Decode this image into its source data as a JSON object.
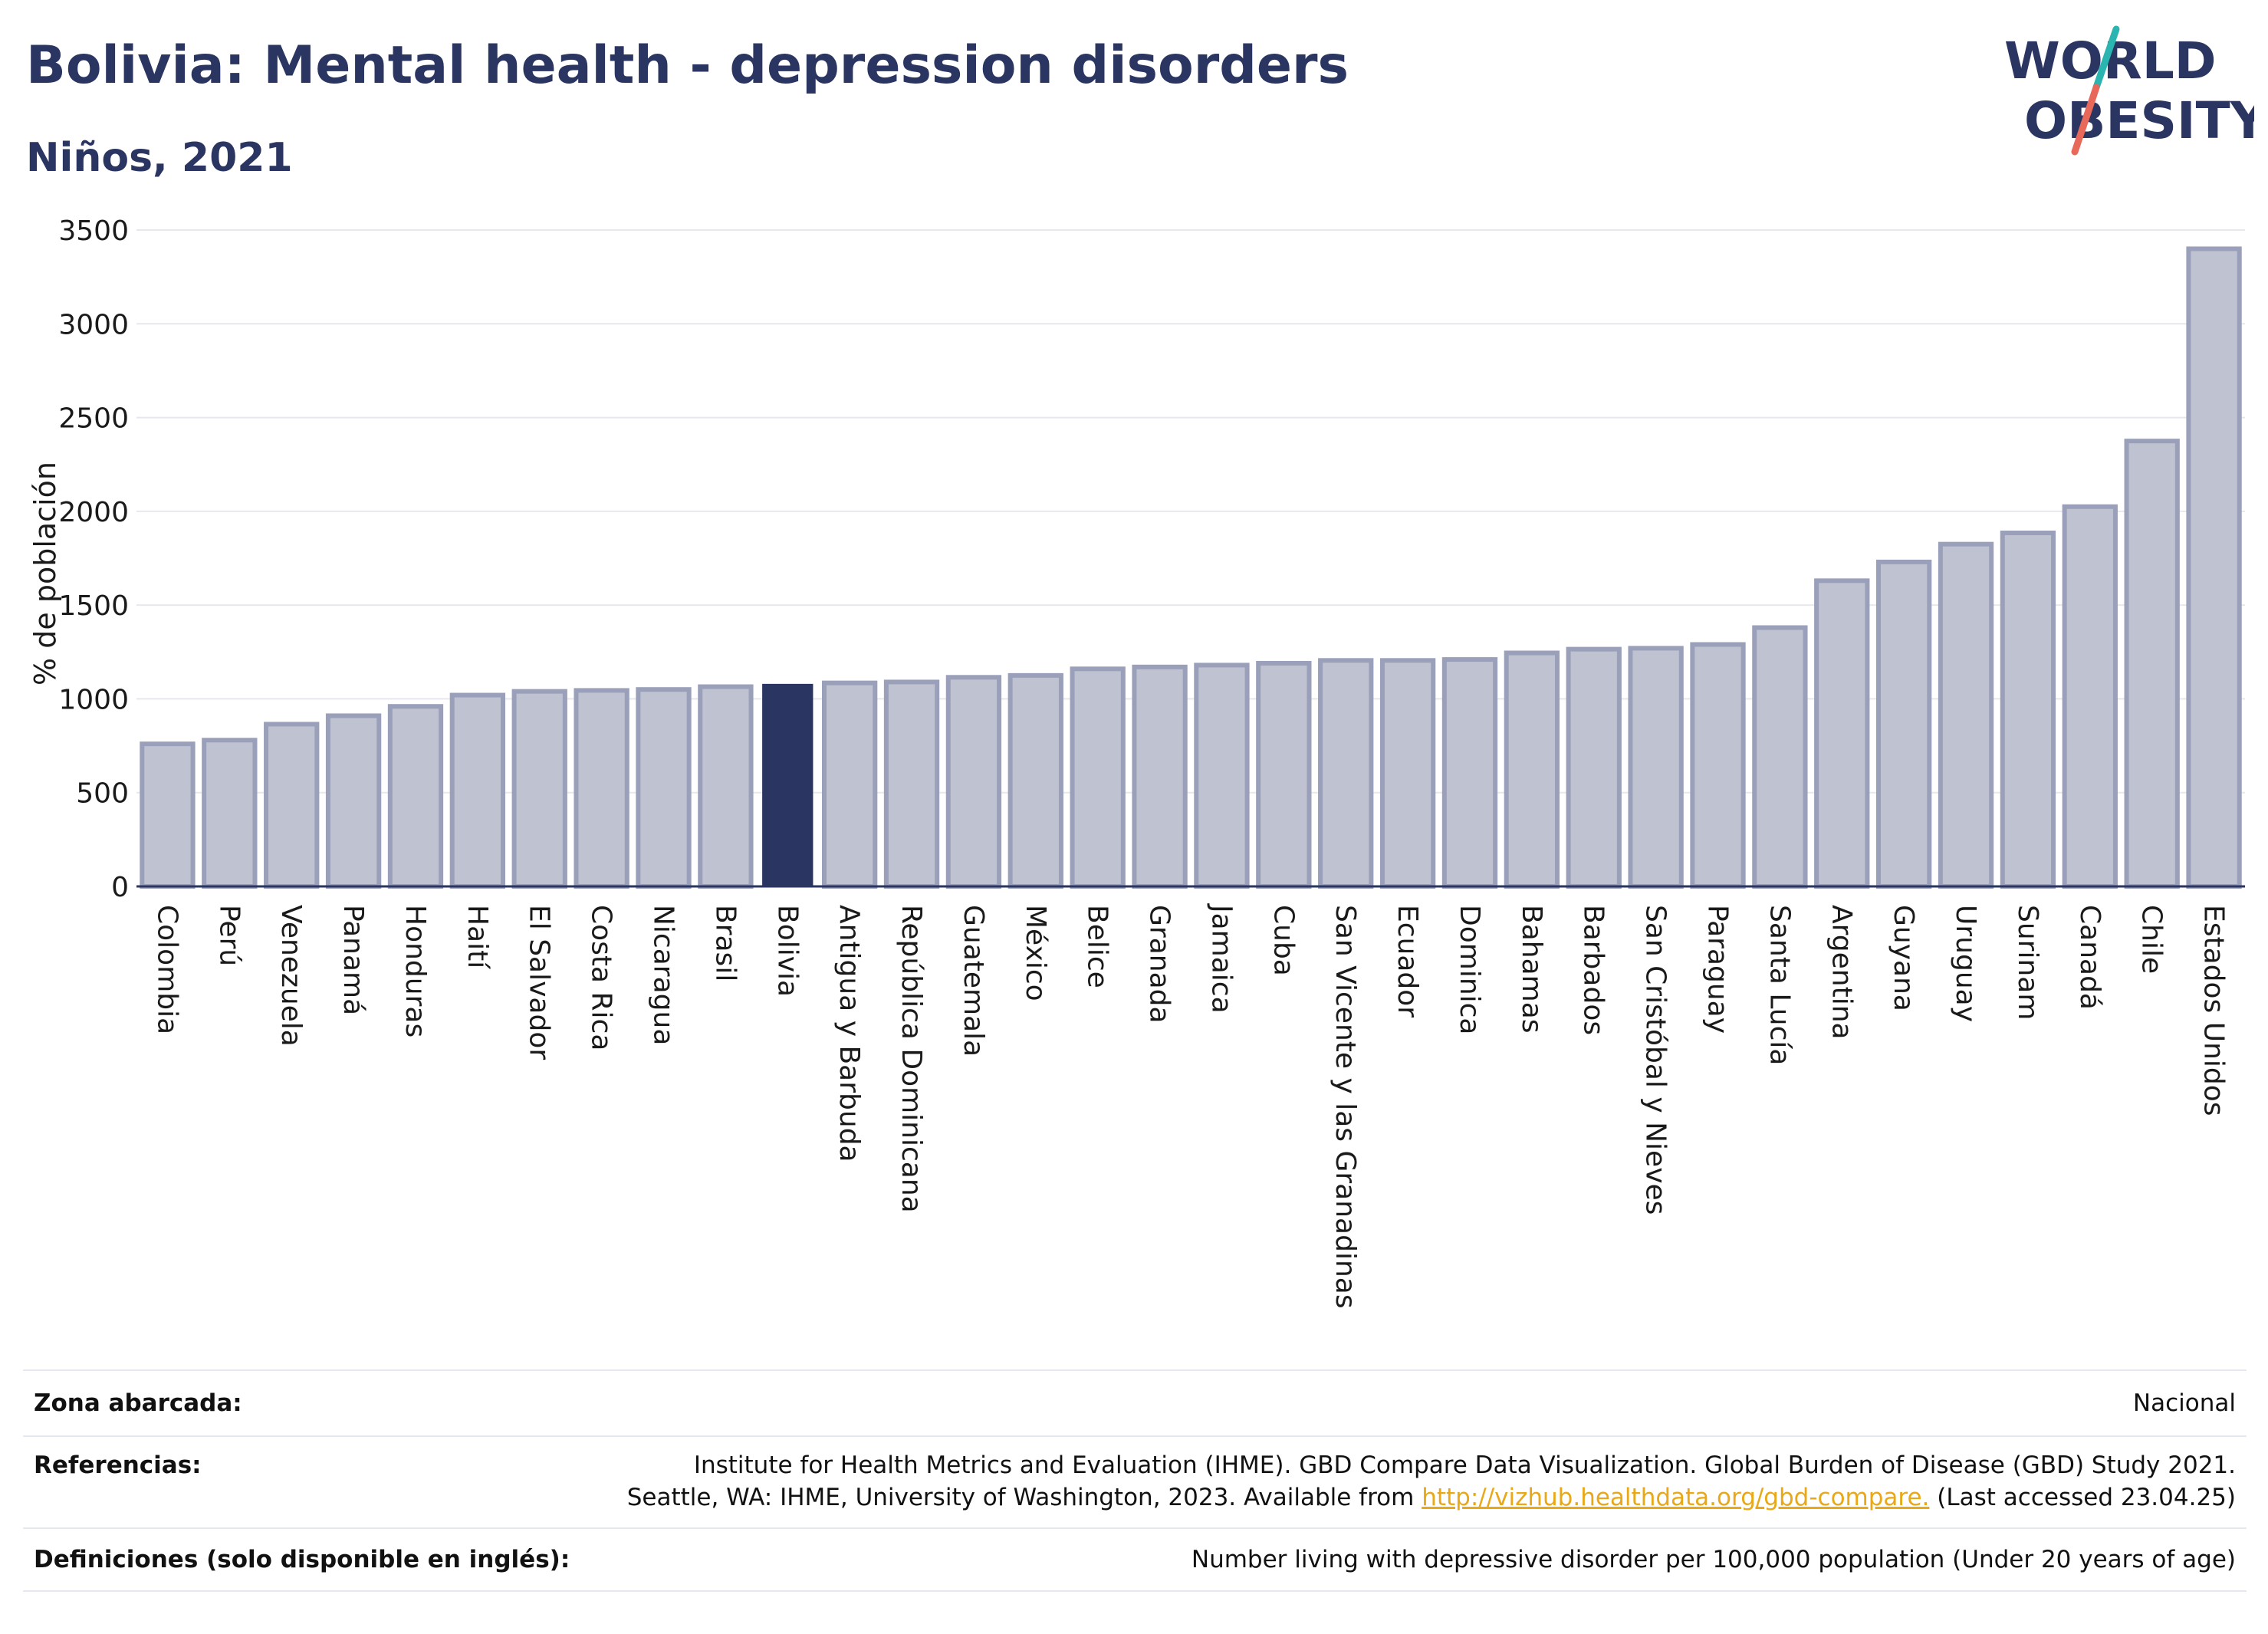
{
  "header": {
    "title": "Bolivia: Mental health - depression disorders",
    "subtitle": "Niños, 2021"
  },
  "logo": {
    "line1": "WORLD",
    "line2": "OBESITY",
    "icon": "world-obesity-logo"
  },
  "colors": {
    "bar": "#bfc2d0",
    "bar_edge": "#9aa0b9",
    "highlight": "#2a3561",
    "grid": "#e6e8ee",
    "text": "#2a3561",
    "link": "#e8a817",
    "logo_teal": "#2bb5b0",
    "logo_red": "#e8685a"
  },
  "chart_data": {
    "type": "bar",
    "ylabel": "% de población",
    "ylim": [
      0,
      3500
    ],
    "yticks": [
      0,
      500,
      1000,
      1500,
      2000,
      2500,
      3000,
      3500
    ],
    "grid": true,
    "highlight": "Bolivia",
    "categories": [
      "Colombia",
      "Perú",
      "Venezuela",
      "Panamá",
      "Honduras",
      "Haití",
      "El Salvador",
      "Costa Rica",
      "Nicaragua",
      "Brasil",
      "Bolivia",
      "Antigua y Barbuda",
      "República Dominicana",
      "Guatemala",
      "México",
      "Belice",
      "Granada",
      "Jamaica",
      "Cuba",
      "San Vicente y las Granadinas",
      "Ecuador",
      "Dominica",
      "Bahamas",
      "Barbados",
      "San Cristóbal y Nieves",
      "Paraguay",
      "Santa Lucía",
      "Argentina",
      "Guyana",
      "Uruguay",
      "Surinam",
      "Canadá",
      "Chile",
      "Estados Unidos"
    ],
    "values": [
      760,
      780,
      865,
      910,
      960,
      1020,
      1040,
      1045,
      1050,
      1065,
      1080,
      1085,
      1090,
      1115,
      1125,
      1160,
      1170,
      1180,
      1190,
      1205,
      1205,
      1210,
      1245,
      1265,
      1270,
      1290,
      1380,
      1630,
      1730,
      1825,
      1885,
      2025,
      2375,
      3400
    ]
  },
  "footer": {
    "coverage_label": "Zona abarcada:",
    "coverage_value": "Nacional",
    "refs_label": "Referencias:",
    "refs_line1": "Institute for Health Metrics and Evaluation (IHME). GBD Compare Data Visualization. Global Burden of Disease (GBD) Study 2021.",
    "refs_line2_pre": "Seattle, WA: IHME, University of Washington, 2023. Available from ",
    "refs_link": "http://vizhub.healthdata.org/gbd-compare.",
    "refs_line2_post": " (Last accessed 23.04.25)",
    "defs_label": "Definiciones (solo disponible en inglés):",
    "defs_value": "Number living with depressive disorder per 100,000 population (Under 20 years of age)"
  }
}
